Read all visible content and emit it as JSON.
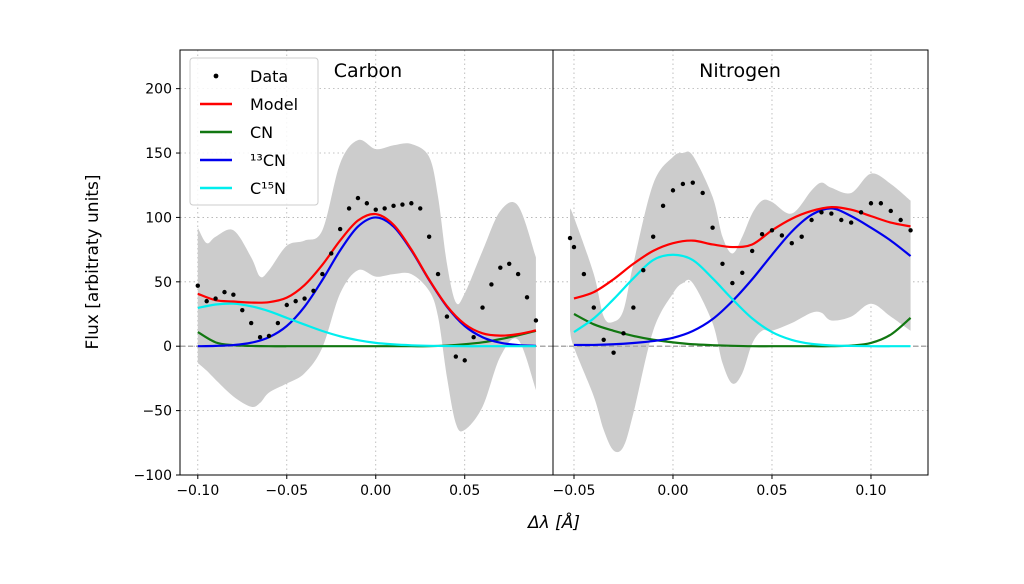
{
  "chart_data": {
    "type": "line",
    "ylabel": "Flux [arbitraty units]",
    "xlabel": "Δλ [Å]",
    "ylim": [
      -100,
      230
    ],
    "yticks": [
      -100,
      -50,
      0,
      50,
      100,
      150,
      200
    ],
    "ytick_labels": [
      "−100",
      "−50",
      "0",
      "50",
      "100",
      "150",
      "200"
    ],
    "grid": true,
    "legend_placement": "upper-left",
    "legend": [
      {
        "label": "Data",
        "color": "#000000",
        "kind": "dot"
      },
      {
        "label": "Model",
        "color": "#ff0000",
        "kind": "line"
      },
      {
        "label": "CN",
        "color": "#117711",
        "kind": "line"
      },
      {
        "label": "¹³CN",
        "color": "#0000ee",
        "kind": "line"
      },
      {
        "label": "C¹⁵N",
        "color": "#00eeee",
        "kind": "line"
      }
    ],
    "band_color": "#cccccc",
    "panels": [
      {
        "title": "Carbon",
        "xlim": [
          -0.11,
          0.0996
        ],
        "xticks": [
          -0.1,
          -0.05,
          0.0,
          0.05
        ],
        "xtick_labels": [
          "−0.10",
          "−0.05",
          "0.00",
          "0.05"
        ],
        "data": {
          "x": [
            -0.1,
            -0.095,
            -0.09,
            -0.085,
            -0.08,
            -0.075,
            -0.07,
            -0.065,
            -0.06,
            -0.055,
            -0.05,
            -0.045,
            -0.04,
            -0.035,
            -0.03,
            -0.025,
            -0.02,
            -0.015,
            -0.01,
            -0.005,
            0.0,
            0.005,
            0.01,
            0.015,
            0.02,
            0.025,
            0.03,
            0.035,
            0.04,
            0.045,
            0.05,
            0.055,
            0.06,
            0.065,
            0.07,
            0.075,
            0.08,
            0.085,
            0.09
          ],
          "y": [
            47,
            35,
            37,
            42,
            40,
            28,
            18,
            7,
            8,
            18,
            32,
            35,
            37,
            43,
            56,
            72,
            91,
            107,
            115,
            111,
            106,
            107,
            109,
            110,
            111,
            107,
            85,
            56,
            23,
            -8,
            -11,
            7,
            30,
            48,
            61,
            64,
            56,
            38,
            20
          ]
        },
        "band": {
          "x": [
            -0.1,
            -0.095,
            -0.09,
            -0.08,
            -0.07,
            -0.065,
            -0.06,
            -0.05,
            -0.04,
            -0.03,
            -0.02,
            -0.01,
            0.0,
            0.01,
            0.02,
            0.03,
            0.035,
            0.04,
            0.045,
            0.05,
            0.06,
            0.07,
            0.08,
            0.09
          ],
          "upper": [
            92,
            80,
            85,
            90,
            69,
            54,
            59,
            78,
            82,
            90,
            142,
            160,
            153,
            156,
            157,
            147,
            116,
            64,
            34,
            41,
            74,
            105,
            109,
            69
          ],
          "lower": [
            -13,
            -19,
            -26,
            -39,
            -47,
            -44,
            -36,
            -29,
            -21,
            -1,
            41,
            59,
            54,
            56,
            56,
            43,
            23,
            -24,
            -60,
            -65,
            -47,
            -8,
            5,
            -34
          ]
        },
        "curves_x": [
          -0.1,
          -0.09,
          -0.08,
          -0.07,
          -0.06,
          -0.05,
          -0.04,
          -0.03,
          -0.02,
          -0.01,
          0.0,
          0.01,
          0.02,
          0.03,
          0.04,
          0.05,
          0.06,
          0.07,
          0.08,
          0.09
        ],
        "series": [
          {
            "name": "CN",
            "color": "#117711",
            "values": [
              11,
              3,
              0.8,
              0.2,
              0,
              0,
              0,
              0,
              0,
              0,
              0,
              0,
              0,
              0,
              0.5,
              1.5,
              3,
              5.5,
              8.5,
              12
            ]
          },
          {
            "name": "¹³CN",
            "color": "#0000ee",
            "values": [
              0,
              0.25,
              0.9,
              2.7,
              7,
              15.7,
              30.7,
              51.4,
              74.4,
              92.9,
              100,
              92.9,
              74.4,
              51.4,
              30.7,
              15.7,
              7,
              2.7,
              0.9,
              0.25
            ]
          },
          {
            "name": "C¹⁵N",
            "color": "#00eeee",
            "values": [
              29.7,
              32.4,
              33,
              31,
              27.2,
              22,
              16.8,
              11.8,
              7.7,
              4.7,
              2.6,
              1.4,
              0.7,
              0.3,
              0.1,
              0,
              0,
              0,
              0,
              0
            ]
          },
          {
            "name": "Model",
            "color": "#ff0000",
            "values": [
              40.7,
              35.7,
              34.7,
              33.9,
              34.2,
              37.7,
              47.5,
              63.2,
              82.1,
              97.6,
              102.6,
              94.3,
              75.1,
              51.7,
              31.2,
              17.2,
              10,
              8.2,
              9.4,
              12.3
            ]
          }
        ]
      },
      {
        "title": "Nitrogen",
        "xlim": [
          -0.0606,
          0.1288
        ],
        "xticks": [
          -0.05,
          0.0,
          0.05,
          0.1
        ],
        "xtick_labels": [
          "−0.05",
          "0.00",
          "0.05",
          "0.10"
        ],
        "data": {
          "x": [
            -0.052,
            -0.05,
            -0.045,
            -0.04,
            -0.035,
            -0.03,
            -0.025,
            -0.02,
            -0.015,
            -0.01,
            -0.005,
            0.0,
            0.005,
            0.01,
            0.015,
            0.02,
            0.025,
            0.03,
            0.035,
            0.04,
            0.045,
            0.05,
            0.055,
            0.06,
            0.065,
            0.07,
            0.075,
            0.08,
            0.085,
            0.09,
            0.095,
            0.1,
            0.105,
            0.11,
            0.115,
            0.12
          ],
          "y": [
            84,
            77,
            56,
            30,
            5,
            -5,
            10,
            30,
            59,
            85,
            109,
            121,
            126,
            127,
            119,
            92,
            64,
            49,
            57,
            74,
            87,
            90,
            86,
            80,
            85,
            98,
            104,
            103,
            98,
            96,
            104,
            111,
            111,
            105,
            98,
            90
          ]
        },
        "band": {
          "x": [
            -0.052,
            -0.05,
            -0.04,
            -0.035,
            -0.03,
            -0.025,
            -0.02,
            -0.01,
            0.0,
            0.005,
            0.01,
            0.02,
            0.025,
            0.03,
            0.035,
            0.04,
            0.045,
            0.05,
            0.06,
            0.07,
            0.075,
            0.08,
            0.09,
            0.1,
            0.11,
            0.12
          ],
          "upper": [
            107,
            100,
            56,
            23,
            19,
            28,
            64,
            126,
            147,
            150,
            148,
            116,
            85,
            72,
            85,
            103,
            113,
            112,
            103,
            121,
            127,
            123,
            119,
            134,
            126,
            113
          ],
          "lower": [
            12,
            -1,
            -39,
            -65,
            -81,
            -78,
            -52,
            12,
            41,
            49,
            49,
            18,
            -13,
            -29,
            -21,
            2,
            12,
            12,
            18,
            26,
            26,
            20,
            23,
            33,
            23,
            12
          ]
        },
        "curves_x": [
          -0.05,
          -0.04,
          -0.03,
          -0.02,
          -0.01,
          0.0,
          0.01,
          0.02,
          0.03,
          0.04,
          0.05,
          0.06,
          0.07,
          0.08,
          0.09,
          0.1,
          0.11,
          0.12
        ],
        "series": [
          {
            "name": "CN",
            "color": "#117711",
            "values": [
              25,
              17,
              12,
              8,
              5,
              3,
              1.5,
              0.8,
              0.3,
              0,
              0,
              0,
              0,
              0,
              0.5,
              2.5,
              9,
              22
            ]
          },
          {
            "name": "¹³CN",
            "color": "#0000ee",
            "values": [
              1,
              1,
              1.5,
              2.5,
              4,
              6.5,
              11.8,
              21,
              35,
              52,
              71,
              89,
              102,
              107,
              101,
              92,
              82,
              70
            ]
          },
          {
            "name": "C¹⁵N",
            "color": "#00eeee",
            "values": [
              11,
              21.6,
              36.5,
              52.7,
              66.9,
              71,
              66.9,
              52.7,
              36.5,
              21.6,
              11,
              4.9,
              1.8,
              0.6,
              0.2,
              0,
              0,
              0
            ]
          },
          {
            "name": "Model",
            "color": "#ff0000",
            "values": [
              37,
              42,
              52,
              64,
              74,
              80,
              82,
              79,
              77,
              79,
              90,
              99,
              105,
              108,
              106,
              101,
              96,
              93
            ]
          }
        ]
      }
    ]
  }
}
